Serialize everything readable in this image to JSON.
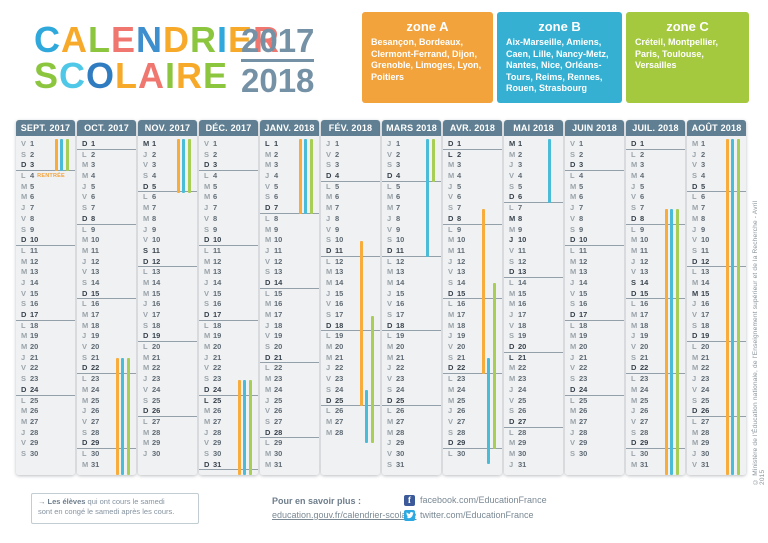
{
  "title": {
    "line1": "CALENDRIER",
    "line1_colors": [
      "#2FA8DC",
      "#F7A929",
      "#8CC63F",
      "#F0776F",
      "#3E8FCD",
      "#F7A929",
      "#8CC63F",
      "#2FA8DC",
      "#F7A929",
      "#F0776F"
    ],
    "line2": "SCOLAIRE",
    "line2_colors": [
      "#8CC63F",
      "#4FC8E8",
      "#2F7DC0",
      "#F7A929",
      "#F0776F",
      "#8CC63F",
      "#F7A929",
      "#8CC63F"
    ],
    "year1": "2017",
    "year2": "2018"
  },
  "zones": [
    {
      "id": "A",
      "label": "zone A",
      "color": "#F2A33C",
      "cities": "Besançon, Bordeaux, Clermont-Ferrand, Dijon, Grenoble, Limoges, Lyon, Poitiers"
    },
    {
      "id": "B",
      "label": "zone B",
      "color": "#35B0D2",
      "cities": "Aix-Marseille, Amiens, Caen, Lille, Nancy-Metz, Nantes, Nice, Orléans-Tours, Reims, Rennes, Rouen, Strasbourg"
    },
    {
      "id": "C",
      "label": "zone C",
      "color": "#A4C93E",
      "cities": "Créteil, Montpellier, Paris, Toulouse, Versailles"
    }
  ],
  "zone_colors": {
    "A": "#F7AC3B",
    "B": "#4BBCD8",
    "C": "#A9CE55"
  },
  "weekday_letters": [
    "L",
    "M",
    "M",
    "J",
    "V",
    "S",
    "D"
  ],
  "rentree_label": "RENTRÉE",
  "months": [
    {
      "id": "sept-2017",
      "name": "SEPT. 2017",
      "days": 30,
      "start": 4,
      "bold": [
        3,
        10,
        17,
        24
      ],
      "rentree": 4,
      "bars": [
        {
          "zone": "A",
          "from": 1,
          "to": 3
        },
        {
          "zone": "B",
          "from": 1,
          "to": 3
        },
        {
          "zone": "C",
          "from": 1,
          "to": 3
        }
      ]
    },
    {
      "id": "oct-2017",
      "name": "OCT. 2017",
      "days": 31,
      "start": 6,
      "bold": [
        1,
        8,
        15,
        22,
        29
      ],
      "bars": [
        {
          "zone": "A",
          "from": 21.5,
          "to": 31,
          "cont": true
        },
        {
          "zone": "B",
          "from": 21.5,
          "to": 31,
          "cont": true
        },
        {
          "zone": "C",
          "from": 21.5,
          "to": 31,
          "cont": true
        }
      ]
    },
    {
      "id": "nov-2017",
      "name": "NOV. 2017",
      "days": 30,
      "start": 2,
      "bold": [
        1,
        5,
        11,
        12,
        19,
        26
      ],
      "bars": [
        {
          "zone": "A",
          "from": 1,
          "to": 5
        },
        {
          "zone": "B",
          "from": 1,
          "to": 5
        },
        {
          "zone": "C",
          "from": 1,
          "to": 5
        }
      ]
    },
    {
      "id": "dec-2017",
      "name": "DÉC. 2017",
      "days": 31,
      "start": 4,
      "bold": [
        3,
        10,
        17,
        24,
        25,
        31
      ],
      "bars": [
        {
          "zone": "A",
          "from": 23.5,
          "to": 31,
          "cont": true
        },
        {
          "zone": "B",
          "from": 23.5,
          "to": 31,
          "cont": true
        },
        {
          "zone": "C",
          "from": 23.5,
          "to": 31,
          "cont": true
        }
      ]
    },
    {
      "id": "janv-2018",
      "name": "JANV. 2018",
      "days": 31,
      "start": 0,
      "bold": [
        1,
        7,
        14,
        21,
        28
      ],
      "bars": [
        {
          "zone": "A",
          "from": 1,
          "to": 7
        },
        {
          "zone": "B",
          "from": 1,
          "to": 7
        },
        {
          "zone": "C",
          "from": 1,
          "to": 7
        }
      ]
    },
    {
      "id": "fev-2018",
      "name": "FÉV. 2018",
      "days": 28,
      "start": 3,
      "bold": [
        4,
        11,
        18,
        25
      ],
      "bars": [
        {
          "zone": "A",
          "from": 10.5,
          "to": 25
        },
        {
          "zone": "C",
          "from": 17.5,
          "to": 28,
          "cont": true
        },
        {
          "zone": "B",
          "from": 24.5,
          "to": 28,
          "cont": true
        }
      ]
    },
    {
      "id": "mars-2018",
      "name": "MARS 2018",
      "days": 31,
      "start": 3,
      "bold": [
        4,
        11,
        18,
        25
      ],
      "bars": [
        {
          "zone": "C",
          "from": 1,
          "to": 4
        },
        {
          "zone": "B",
          "from": 1,
          "to": 11
        }
      ]
    },
    {
      "id": "avr-2018",
      "name": "AVR. 2018",
      "days": 30,
      "start": 6,
      "bold": [
        1,
        2,
        8,
        15,
        22,
        29
      ],
      "bars": [
        {
          "zone": "A",
          "from": 7.5,
          "to": 22
        },
        {
          "zone": "C",
          "from": 14.5,
          "to": 29
        },
        {
          "zone": "B",
          "from": 21.5,
          "to": 30,
          "cont": true
        }
      ]
    },
    {
      "id": "mai-2018",
      "name": "MAI 2018",
      "days": 31,
      "start": 1,
      "bold": [
        1,
        6,
        8,
        10,
        13,
        20,
        21,
        27
      ],
      "bars": [
        {
          "zone": "B",
          "from": 1,
          "to": 6
        }
      ]
    },
    {
      "id": "juin-2018",
      "name": "JUIN 2018",
      "days": 30,
      "start": 4,
      "bold": [
        3,
        10,
        17,
        24
      ],
      "bars": []
    },
    {
      "id": "juil-2018",
      "name": "JUIL. 2018",
      "days": 31,
      "start": 6,
      "bold": [
        1,
        8,
        14,
        15,
        22,
        29
      ],
      "bars": [
        {
          "zone": "A",
          "from": 7.5,
          "to": 31,
          "cont": true
        },
        {
          "zone": "B",
          "from": 7.5,
          "to": 31,
          "cont": true
        },
        {
          "zone": "C",
          "from": 7.5,
          "to": 31,
          "cont": true
        }
      ]
    },
    {
      "id": "aout-2018",
      "name": "AOÛT 2018",
      "days": 31,
      "start": 2,
      "bold": [
        5,
        12,
        15,
        19,
        26
      ],
      "bars": [
        {
          "zone": "A",
          "from": 1,
          "to": 31,
          "cont": true
        },
        {
          "zone": "B",
          "from": 1,
          "to": 31,
          "cont": true
        },
        {
          "zone": "C",
          "from": 1,
          "to": 31,
          "cont": true
        }
      ]
    }
  ],
  "footer": {
    "note": {
      "arrow": "→",
      "bold": "Les élèves",
      "line1_rest": " qui ont cours le samedi",
      "line2": "sont en congé le samedi après les cours."
    },
    "more_label": "Pour en savoir plus :",
    "more_link": "education.gouv.fr/calendrier-scolaire",
    "social": [
      {
        "icon": "facebook",
        "text": "facebook.com/EducationFrance"
      },
      {
        "icon": "twitter",
        "text": "twitter.com/EducationFrance"
      }
    ]
  },
  "copyright": "© Ministère de l'Éducation nationale, de l'Enseignement supérieur et de la Recherche - Avril 2015"
}
